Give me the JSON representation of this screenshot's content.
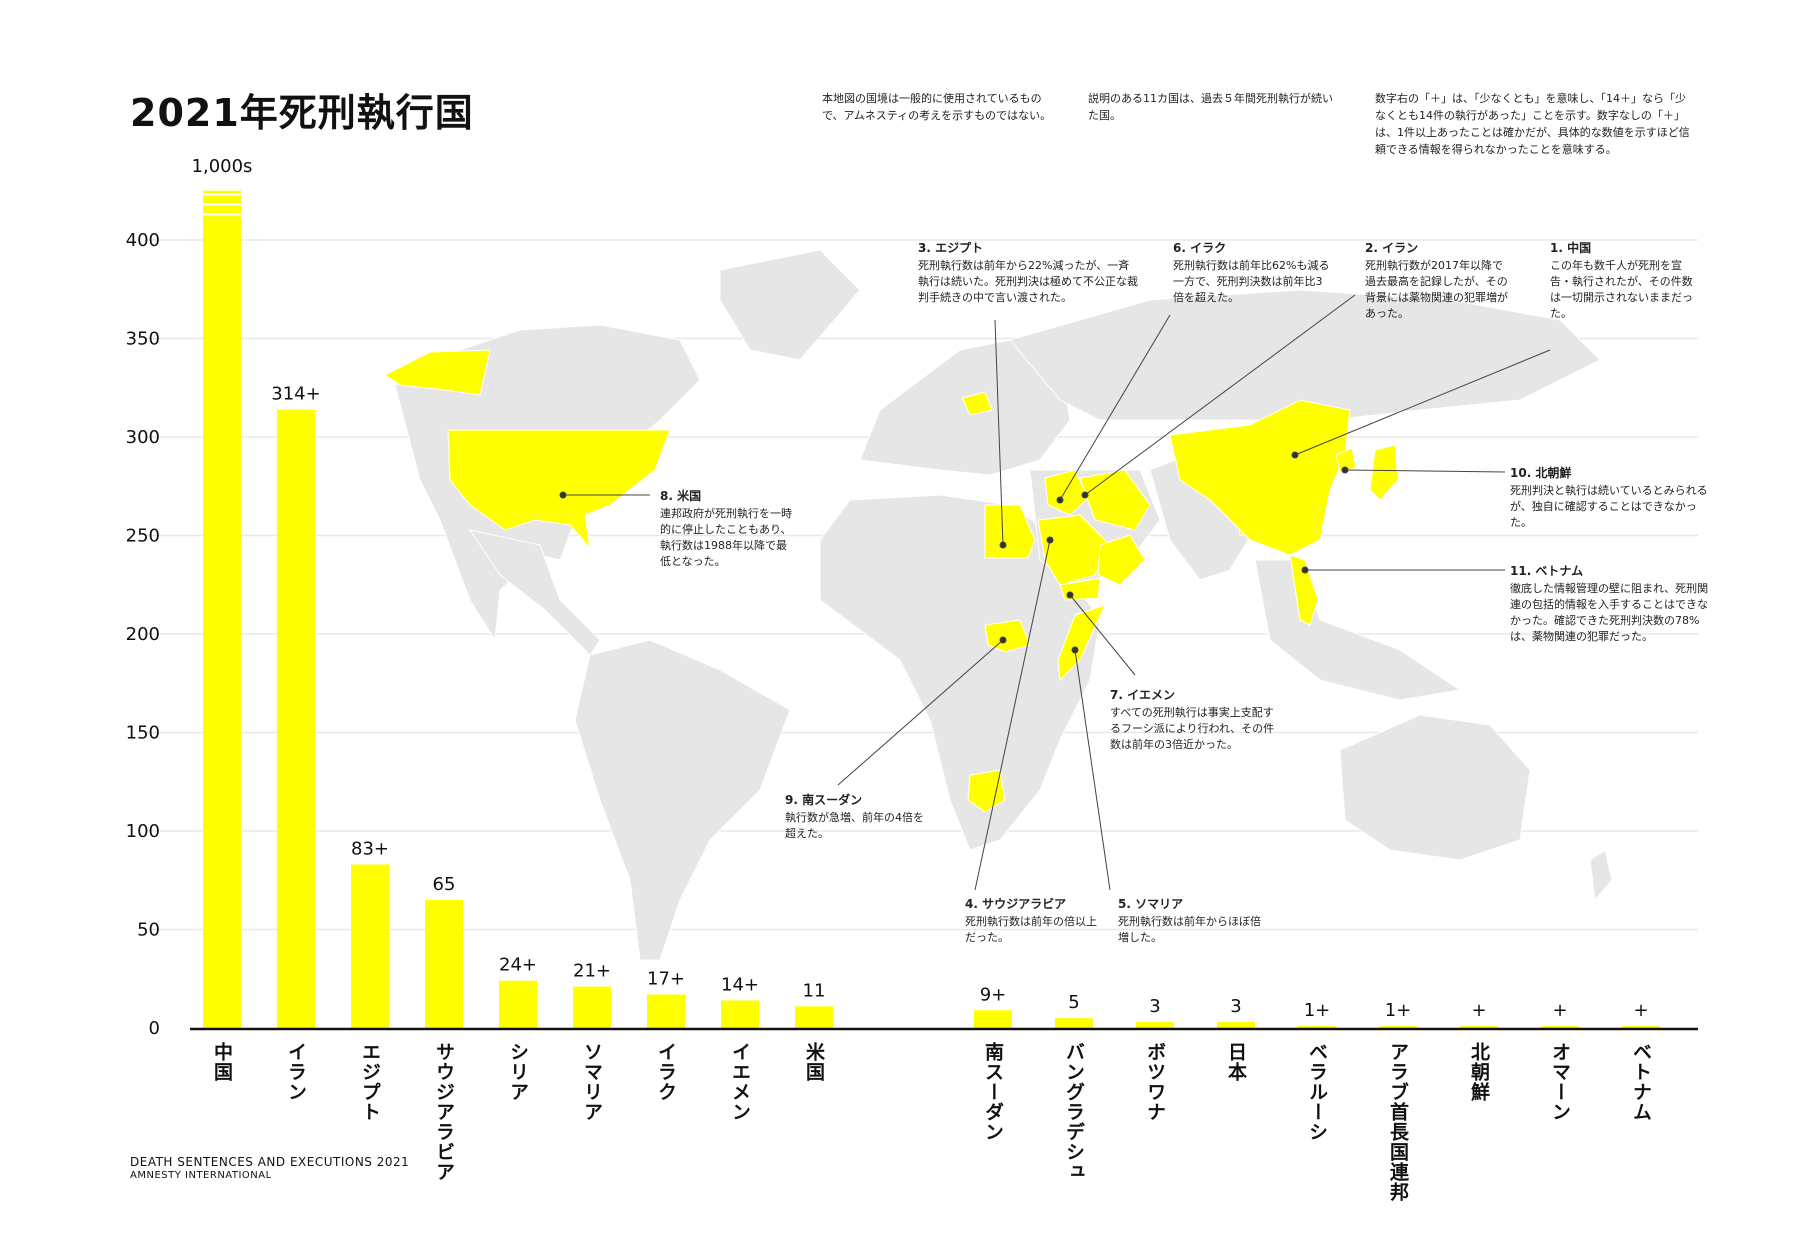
{
  "page": {
    "title": "2021年死刑執行国",
    "notes": [
      "本地図の国境は一般的に使用されているもので、アムネスティの考えを示すものではない。",
      "説明のある11カ国は、過去５年間死刑執行が続いた国。",
      "数字右の「＋」は、「少なくとも」を意味し、「14＋」なら「少なくとも14件の執行があった」ことを示す。数字なしの「＋」は、1件以上あったことは確かだが、具体的な数値を示すほど信頼できる情報を得られなかったことを意味する。"
    ],
    "footer_line1": "DEATH SENTENCES AND EXECUTIONS 2021",
    "footer_line2": "AMNESTY INTERNATIONAL"
  },
  "colors": {
    "bar": "#ffff00",
    "map_land": "#e6e6e6",
    "map_highlight": "#ffff00",
    "grid": "#e8e8e8",
    "axis": "#111111"
  },
  "annotations": [
    {
      "id": "china",
      "heading": "1. 中国",
      "text": "この年も数千人が死刑を宣告・執行されたが、その件数は一切開示されないままだった。"
    },
    {
      "id": "iran",
      "heading": "2. イラン",
      "text": "死刑執行数が2017年以降で過去最高を記録したが、その背景には薬物関連の犯罪増があった。"
    },
    {
      "id": "egypt",
      "heading": "3. エジプト",
      "text": "死刑執行数は前年から22%減ったが、一斉執行は続いた。死刑判決は極めて不公正な裁判手続きの中で言い渡された。"
    },
    {
      "id": "saudi",
      "heading": "4. サウジアラビア",
      "text": "死刑執行数は前年の倍以上だった。"
    },
    {
      "id": "somalia",
      "heading": "5. ソマリア",
      "text": "死刑執行数は前年からほぼ倍増した。"
    },
    {
      "id": "iraq",
      "heading": "6. イラク",
      "text": "死刑執行数は前年比62%も減る一方で、死刑判決数は前年比3倍を超えた。"
    },
    {
      "id": "yemen",
      "heading": "7. イエメン",
      "text": "すべての死刑執行は事実上支配するフーシ派により行われ、その件数は前年の3倍近かった。"
    },
    {
      "id": "usa",
      "heading": "8. 米国",
      "text": "連邦政府が死刑執行を一時的に停止したこともあり、執行数は1988年以降で最低となった。"
    },
    {
      "id": "southsudan",
      "heading": "9. 南スーダン",
      "text": "執行数が急増、前年の4倍を超えた。"
    },
    {
      "id": "northkorea",
      "heading": "10. 北朝鮮",
      "text": "死刑判決と執行は続いているとみられるが、独自に確認することはできなかった。"
    },
    {
      "id": "vietnam",
      "heading": "11. ベトナム",
      "text": "徹底した情報管理の壁に阻まれ、死刑関連の包括的情報を入手することはできなかった。確認できた死刑判決数の78%は、薬物関連の犯罪だった。"
    }
  ],
  "chart_data": {
    "type": "bar",
    "title": "2021年死刑執行国",
    "categories": [
      "中国",
      "イラン",
      "エジプト",
      "サウジアラビア",
      "シリア",
      "ソマリア",
      "イラク",
      "イエメン",
      "米国",
      "南スーダン",
      "バングラデシュ",
      "ボツワナ",
      "日本",
      "ベラルーシ",
      "アラブ首長国連邦",
      "北朝鮮",
      "オマーン",
      "ベトナム"
    ],
    "values": [
      1000,
      314,
      83,
      65,
      24,
      21,
      17,
      14,
      11,
      9,
      5,
      3,
      3,
      1,
      1,
      1,
      1,
      1
    ],
    "value_labels": [
      "1,000s",
      "314+",
      "83+",
      "65",
      "24+",
      "21+",
      "17+",
      "14+",
      "11",
      "9+",
      "5",
      "3",
      "3",
      "1+",
      "1+",
      "+",
      "+",
      "+"
    ],
    "ylim": [
      0,
      400
    ],
    "yticks": [
      0,
      50,
      100,
      150,
      200,
      250,
      300,
      350,
      400
    ],
    "axis_break": "中国 bar exceeds axis (1,000s)",
    "grid": true,
    "xlabel": "",
    "ylabel": ""
  }
}
